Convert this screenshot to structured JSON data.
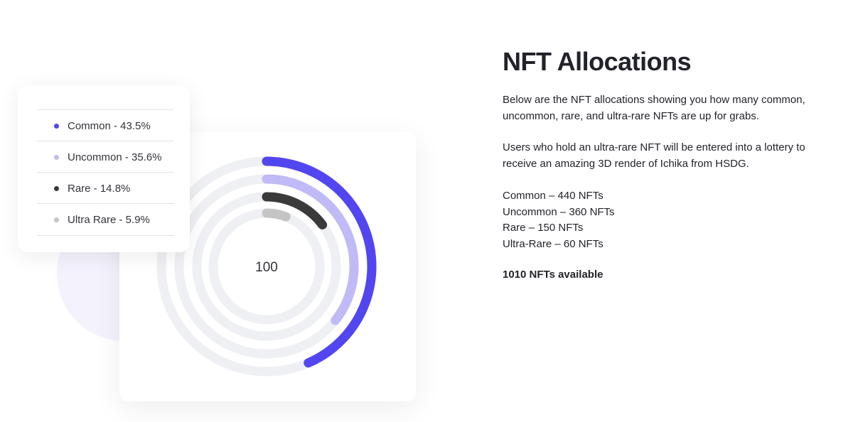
{
  "chart_data": {
    "type": "radial-bar",
    "values": [
      43.5,
      35.6,
      14.8,
      5.9
    ],
    "value_labels": [
      "Common - 43.5%",
      "Uncommon - 35.6%",
      "Rare - 14.8%",
      "Ultra Rare - 5.9%"
    ],
    "colors": [
      "#5246f0",
      "#c0bbf6",
      "#3a3a3a",
      "#c4c4c4"
    ],
    "rlim": [
      0,
      100
    ],
    "center_label": "100"
  },
  "content": {
    "title": "NFT Allocations",
    "paragraphs": [
      [
        "Below are the NFT allocations showing you how many common,",
        "uncommon, rare, and ultra-rare NFTs are up for grabs."
      ],
      [
        "Users who hold an ultra-rare NFT will be entered into a lottery to",
        "receive an amazing 3D render of Ichika from HSDG."
      ],
      [
        "Common – 440 NFTs",
        "Uncommon – 360 NFTs",
        "Rare – 150 NFTs",
        "Ultra-Rare – 60 NFTs"
      ]
    ],
    "footer": "1010 NFTs available"
  }
}
